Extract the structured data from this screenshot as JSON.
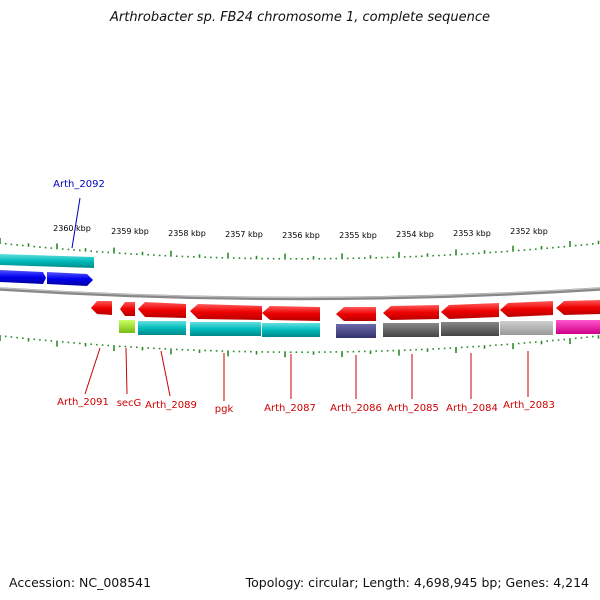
{
  "title": "Arthrobacter sp. FB24 chromosome 1, complete sequence",
  "footer": {
    "accession": "Accession: NC_008541",
    "summary": "Topology: circular; Length: 4,698,945 bp; Genes: 4,214"
  },
  "scale_labels": [
    "2360 kbp",
    "2359 kbp",
    "2358 kbp",
    "2357 kbp",
    "2356 kbp",
    "2355 kbp",
    "2354 kbp",
    "2353 kbp",
    "2352 kbp"
  ],
  "gene_labels": [
    {
      "text": "Arth_2092",
      "color": "#0000bb"
    },
    {
      "text": "Arth_2091",
      "color": "#cc0000"
    },
    {
      "text": "secG",
      "color": "#cc0000"
    },
    {
      "text": "Arth_2089",
      "color": "#cc0000"
    },
    {
      "text": "pgk",
      "color": "#cc0000"
    },
    {
      "text": "Arth_2087",
      "color": "#cc0000"
    },
    {
      "text": "Arth_2086",
      "color": "#cc0000"
    },
    {
      "text": "Arth_2085",
      "color": "#cc0000"
    },
    {
      "text": "Arth_2084",
      "color": "#cc0000"
    },
    {
      "text": "Arth_2083",
      "color": "#cc0000"
    }
  ],
  "colors": {
    "gene_forward": "#0000ee",
    "gene_reverse": "#ee0000",
    "cog_cyan": "#00bbbb",
    "cog_green": "#99dd22",
    "cog_navy": "#44448a",
    "cog_gray": "#666666",
    "cog_lightgray": "#aaaaaa",
    "cog_magenta": "#ee11aa",
    "backbone": "#888888",
    "ticks": "#2a8a2a"
  }
}
